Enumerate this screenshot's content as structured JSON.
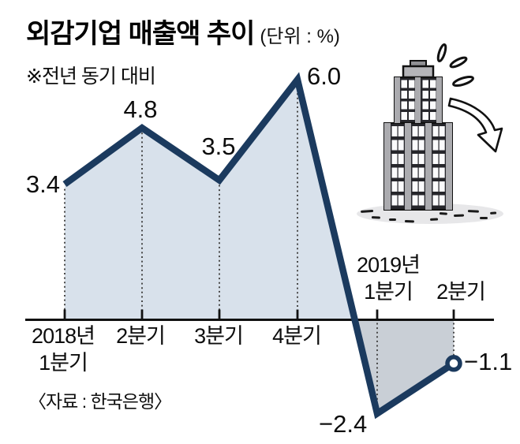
{
  "header": {
    "title": "외감기업 매출액 추이",
    "unit_label": "(단위 : %)",
    "note": "※전년 동기 대비"
  },
  "footer": {
    "source": "〈자료 : 한국은행〉"
  },
  "chart_data": {
    "type": "area",
    "title": "외감기업 매출액 추이",
    "unit": "%",
    "note": "전년 동기 대비",
    "categories": [
      "2018년 1분기",
      "2018년 2분기",
      "2018년 3분기",
      "2018년 4분기",
      "2019년 1분기",
      "2019년 2분기"
    ],
    "values": [
      3.4,
      4.8,
      3.5,
      6.0,
      -2.4,
      -1.1
    ],
    "point_labels": [
      "3.4",
      "4.8",
      "3.5",
      "6.0",
      "−2.4",
      "−1.1"
    ],
    "baseline": 0,
    "ylim": [
      -3,
      7
    ],
    "grid": false,
    "legend": false,
    "last_point_marker": "open-circle",
    "colors": {
      "line": "#1b3a5e",
      "fill_positive": "#d8e1eb",
      "fill_negative": "#c9cfd6",
      "marker_fill": "#ffffff",
      "axis": "#111111"
    }
  },
  "x_axis": {
    "below_labels": [
      [
        "2018년",
        "1분기"
      ],
      [
        "2분기"
      ],
      [
        "3분기"
      ],
      [
        "4분기"
      ]
    ],
    "above_labels": [
      [
        "2019년",
        "1분기"
      ],
      [
        "2분기"
      ]
    ]
  },
  "illustration": {
    "building_icon": "falling-building-icon",
    "arrow_icon": "curved-down-arrow-icon",
    "sweat_icon": "sweat-drops-icon"
  }
}
